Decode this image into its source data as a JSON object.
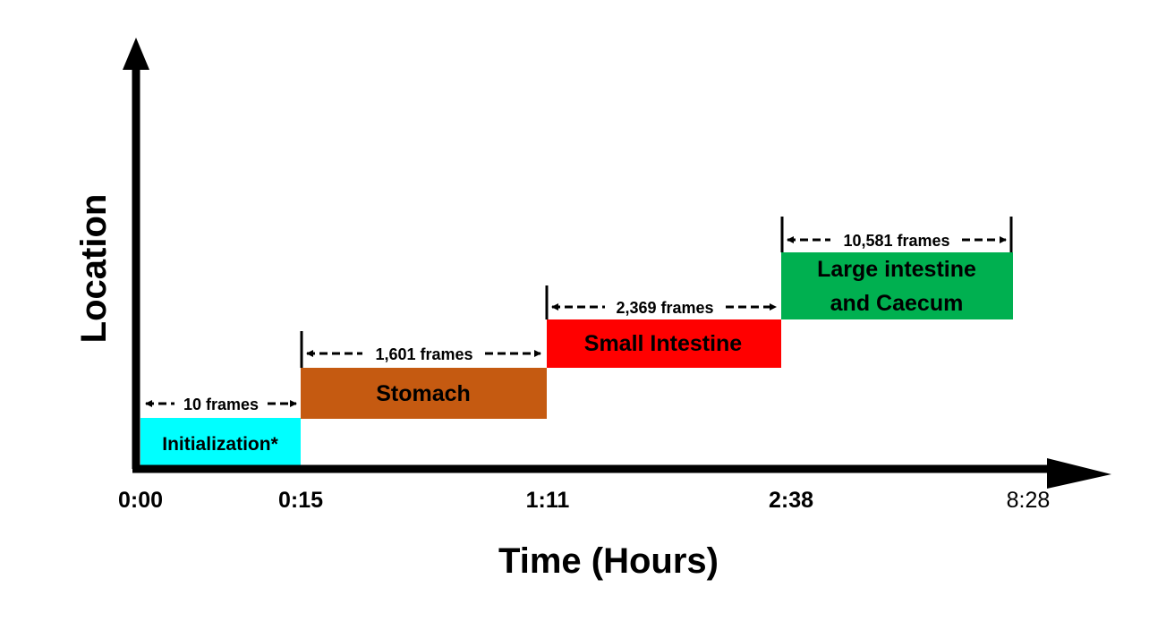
{
  "axes": {
    "y_label": "Location",
    "x_label": "Time (Hours)"
  },
  "ticks": [
    "0:00",
    "0:15",
    "1:11",
    "2:38",
    "8:28"
  ],
  "segments": [
    {
      "lines": [
        "Initialization*"
      ],
      "frames_label": "10 frames",
      "color": "#00ffff"
    },
    {
      "lines": [
        "Stomach"
      ],
      "frames_label": "1,601 frames",
      "color": "#c55a11"
    },
    {
      "lines": [
        "Small Intestine"
      ],
      "frames_label": "2,369 frames",
      "color": "#ff0000"
    },
    {
      "lines": [
        "Large intestine",
        "and Caecum"
      ],
      "frames_label": "10,581 frames",
      "color": "#00b050"
    }
  ]
}
